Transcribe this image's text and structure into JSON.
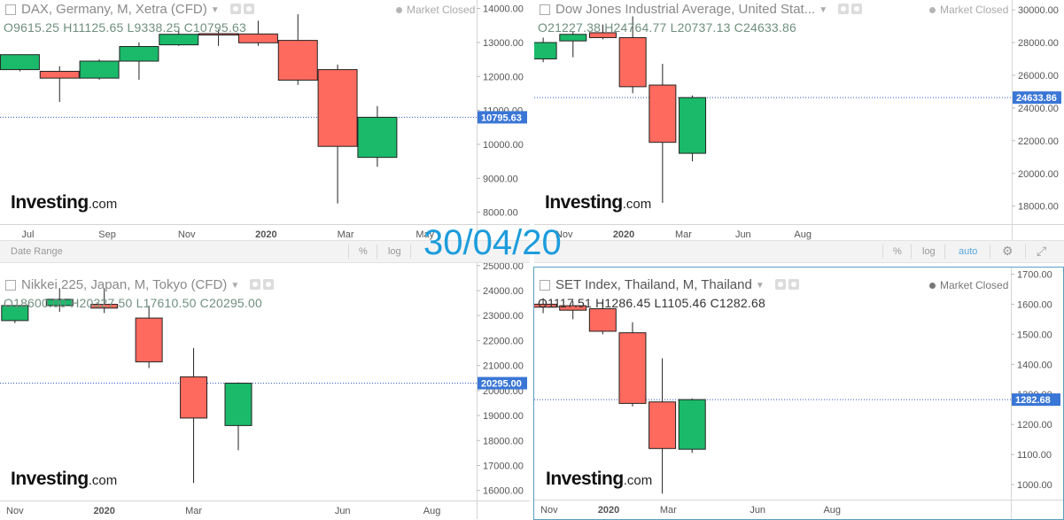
{
  "overlay_date": "30/04/20",
  "toolbar": {
    "date_range": "Date Range",
    "percent": "%",
    "log": "log",
    "auto": "auto",
    "gear_icon": "gear-icon"
  },
  "colors": {
    "up": "#1aba6a",
    "down": "#ff6a5e",
    "price_line": "#2c56c6",
    "price_label": "#3a76d6",
    "date_overlay": "#1c9cdc"
  },
  "chart_data": [
    {
      "type": "candlestick",
      "title": "DAX, Germany, M, Xetra (CFD)",
      "status": "Market Closed",
      "ohlc_text": {
        "o": "O9615.25",
        "h": "H11125.65",
        "l": "L9338.25",
        "c": "C10795.63"
      },
      "last_price_label": "10795.63",
      "last_price": 10795.63,
      "brand": {
        "name": "Investing",
        "suffix": ".com"
      },
      "y_range": [
        7650,
        14250
      ],
      "y_ticks": [
        8000,
        9000,
        10000,
        11000,
        12000,
        13000,
        14000
      ],
      "y_tick_labels": [
        "8000.00",
        "9000.00",
        "10000.00",
        "11000.00",
        "12000.00",
        "13000.00",
        "14000.00"
      ],
      "x_range": [
        0,
        12
      ],
      "x_ticks": [
        {
          "pos": 0.7,
          "label": "Jul"
        },
        {
          "pos": 2.7,
          "label": "Sep"
        },
        {
          "pos": 4.7,
          "label": "Nov"
        },
        {
          "pos": 6.7,
          "label": "2020"
        },
        {
          "pos": 8.7,
          "label": "Mar"
        },
        {
          "pos": 10.7,
          "label": "May"
        }
      ],
      "candles": [
        {
          "t": 0.5,
          "o": 12200,
          "h": 12650,
          "l": 12150,
          "c": 12640
        },
        {
          "t": 1.5,
          "o": 12150,
          "h": 12300,
          "l": 11250,
          "c": 11950
        },
        {
          "t": 2.5,
          "o": 11950,
          "h": 12500,
          "l": 11900,
          "c": 12450
        },
        {
          "t": 3.5,
          "o": 12450,
          "h": 13000,
          "l": 11900,
          "c": 12880
        },
        {
          "t": 4.5,
          "o": 12930,
          "h": 13350,
          "l": 12900,
          "c": 13240
        },
        {
          "t": 5.5,
          "o": 13260,
          "h": 13380,
          "l": 12900,
          "c": 13220
        },
        {
          "t": 6.5,
          "o": 13250,
          "h": 13640,
          "l": 12900,
          "c": 12990
        },
        {
          "t": 7.5,
          "o": 13060,
          "h": 13830,
          "l": 11750,
          "c": 11890
        },
        {
          "t": 8.5,
          "o": 12200,
          "h": 12350,
          "l": 8260,
          "c": 9940
        },
        {
          "t": 9.5,
          "o": 9615.25,
          "h": 11125.65,
          "l": 9338.25,
          "c": 10795.63
        }
      ]
    },
    {
      "type": "candlestick",
      "title": "Dow Jones Industrial Average, United Stat...",
      "status": "Market Closed",
      "ohlc_text": {
        "o": "O21227.38",
        "h": "H24764.77",
        "l": "L20737.13",
        "c": "C24633.86"
      },
      "last_price_label": "24633.86",
      "last_price": 24633.86,
      "brand": {
        "name": "Investing",
        "suffix": ".com"
      },
      "y_range": [
        16900,
        30600
      ],
      "y_ticks": [
        18000,
        20000,
        22000,
        24000,
        26000,
        28000,
        30000
      ],
      "y_tick_labels": [
        "18000.00",
        "20000.00",
        "22000.00",
        "24000.00",
        "26000.00",
        "28000.00",
        "30000.00"
      ],
      "x_range": [
        0,
        16
      ],
      "x_ticks": [
        {
          "pos": 1.0,
          "label": "Nov"
        },
        {
          "pos": 3.0,
          "label": "2020"
        },
        {
          "pos": 5.0,
          "label": "Mar"
        },
        {
          "pos": 7.0,
          "label": "Jun"
        },
        {
          "pos": 9.0,
          "label": "Aug"
        }
      ],
      "candles": [
        {
          "t": 0.3,
          "o": 27000,
          "h": 28300,
          "l": 26800,
          "c": 28000
        },
        {
          "t": 1.3,
          "o": 28100,
          "h": 28700,
          "l": 27100,
          "c": 28500
        },
        {
          "t": 2.3,
          "o": 28600,
          "h": 29100,
          "l": 28200,
          "c": 28300
        },
        {
          "t": 3.3,
          "o": 28300,
          "h": 29600,
          "l": 24900,
          "c": 25300
        },
        {
          "t": 4.3,
          "o": 25400,
          "h": 26700,
          "l": 18200,
          "c": 21900
        },
        {
          "t": 5.3,
          "o": 21227.38,
          "h": 24764.77,
          "l": 20737.13,
          "c": 24633.86
        }
      ]
    },
    {
      "type": "candlestick",
      "title": "Nikkei 225, Japan, M, Tokyo (CFD)",
      "status": "",
      "ohlc_text": {
        "o": "O18600.00",
        "h": "H20327.50",
        "l": "L17610.50",
        "c": "C20295.00"
      },
      "last_price_label": "20295.00",
      "last_price": 20295.0,
      "brand": {
        "name": "Investing",
        "suffix": ".com"
      },
      "y_range": [
        15600,
        25100
      ],
      "y_ticks": [
        16000,
        17000,
        18000,
        19000,
        20000,
        21000,
        22000,
        23000,
        24000,
        25000
      ],
      "y_tick_labels": [
        "16000.00",
        "17000.00",
        "18000.00",
        "19000.00",
        "20000.00",
        "21000.00",
        "22000.00",
        "23000.00",
        "24000.00",
        "25000.00"
      ],
      "x_range": [
        0,
        16
      ],
      "x_ticks": [
        {
          "pos": 0.5,
          "label": "Nov"
        },
        {
          "pos": 3.5,
          "label": "2020"
        },
        {
          "pos": 6.5,
          "label": "Mar"
        },
        {
          "pos": 11.5,
          "label": "Jun"
        },
        {
          "pos": 14.5,
          "label": "Aug"
        }
      ],
      "candles": [
        {
          "t": 0.5,
          "o": 22800,
          "h": 23400,
          "l": 22700,
          "c": 23400
        },
        {
          "t": 2.0,
          "o": 23400,
          "h": 24100,
          "l": 23150,
          "c": 23650
        },
        {
          "t": 3.5,
          "o": 23450,
          "h": 24100,
          "l": 23100,
          "c": 23300
        },
        {
          "t": 5.0,
          "o": 22900,
          "h": 23400,
          "l": 20900,
          "c": 21150
        },
        {
          "t": 6.5,
          "o": 20550,
          "h": 21700,
          "l": 16300,
          "c": 18900
        },
        {
          "t": 8.0,
          "o": 18600.0,
          "h": 20327.5,
          "l": 17610.5,
          "c": 20295.0
        }
      ]
    },
    {
      "type": "candlestick",
      "title": "SET Index, Thailand, M, Thailand",
      "status": "Market Closed",
      "ohlc_text": {
        "o": "O1117.51",
        "h": "H1286.45",
        "l": "L1105.46",
        "c": "C1282.68"
      },
      "last_price_label": "1282.68",
      "last_price": 1282.68,
      "brand": {
        "name": "Investing",
        "suffix": ".com"
      },
      "y_range": [
        950,
        1722
      ],
      "y_ticks": [
        1000,
        1100,
        1200,
        1300,
        1400,
        1500,
        1600,
        1700
      ],
      "y_tick_labels": [
        "1000.00",
        "1100.00",
        "1200.00",
        "1300.00",
        "1400.00",
        "1500.00",
        "1600.00",
        "1700.00"
      ],
      "x_range": [
        0,
        16
      ],
      "x_ticks": [
        {
          "pos": 0.5,
          "label": "Nov"
        },
        {
          "pos": 2.5,
          "label": "2020"
        },
        {
          "pos": 4.5,
          "label": "Mar"
        },
        {
          "pos": 7.5,
          "label": "Jun"
        },
        {
          "pos": 10.0,
          "label": "Aug"
        }
      ],
      "candles": [
        {
          "t": 0.3,
          "o": 1600,
          "h": 1620,
          "l": 1570,
          "c": 1590
        },
        {
          "t": 1.3,
          "o": 1595,
          "h": 1610,
          "l": 1550,
          "c": 1580
        },
        {
          "t": 2.3,
          "o": 1585,
          "h": 1610,
          "l": 1500,
          "c": 1510
        },
        {
          "t": 3.3,
          "o": 1505,
          "h": 1540,
          "l": 1260,
          "c": 1270
        },
        {
          "t": 4.3,
          "o": 1275,
          "h": 1420,
          "l": 970,
          "c": 1120
        },
        {
          "t": 5.3,
          "o": 1117.51,
          "h": 1286.45,
          "l": 1105.46,
          "c": 1282.68
        }
      ]
    }
  ]
}
